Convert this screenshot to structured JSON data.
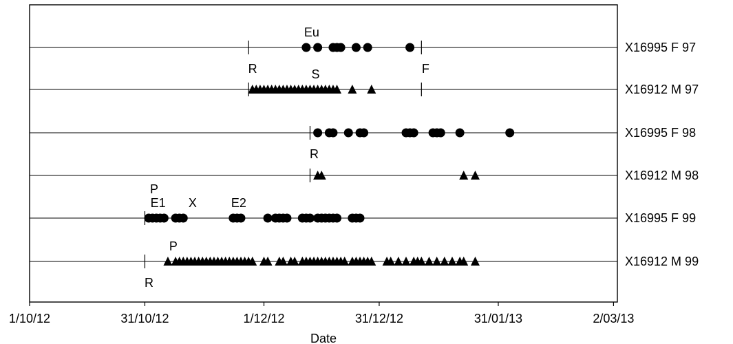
{
  "chart_data": {
    "type": "scatter",
    "title": "",
    "xlabel": "Date",
    "ylabel": "",
    "x_axis": {
      "type": "date",
      "range": [
        "2012-10-01",
        "2013-03-03"
      ],
      "ticks": [
        {
          "date": "2012-10-01",
          "label": "1/10/12"
        },
        {
          "date": "2012-10-31",
          "label": "31/10/12"
        },
        {
          "date": "2012-12-01",
          "label": "1/12/12"
        },
        {
          "date": "2012-12-31",
          "label": "31/12/12"
        },
        {
          "date": "2013-01-31",
          "label": "31/01/13"
        },
        {
          "date": "2013-03-02",
          "label": "2/03/13"
        }
      ]
    },
    "series": [
      {
        "name": "X16995 F 97",
        "marker": "circle",
        "dates": [
          "2012-12-12",
          "2012-12-15",
          "2012-12-19",
          "2012-12-20",
          "2012-12-21",
          "2012-12-25",
          "2012-12-28",
          "2013-01-08"
        ],
        "lines": [
          {
            "date": "2012-11-27",
            "label": "R"
          },
          {
            "date": "2013-01-11",
            "label": "F"
          }
        ],
        "annotations": [
          {
            "date": "2012-12-12",
            "label": "Eu"
          }
        ]
      },
      {
        "name": "X16912 M 97",
        "marker": "triangle",
        "dates": [
          "2012-11-28",
          "2012-11-29",
          "2012-11-30",
          "2012-12-01",
          "2012-12-02",
          "2012-12-03",
          "2012-12-04",
          "2012-12-05",
          "2012-12-06",
          "2012-12-07",
          "2012-12-08",
          "2012-12-09",
          "2012-12-10",
          "2012-12-11",
          "2012-12-12",
          "2012-12-13",
          "2012-12-14",
          "2012-12-15",
          "2012-12-16",
          "2012-12-17",
          "2012-12-18",
          "2012-12-19",
          "2012-12-20",
          "2012-12-24",
          "2012-12-29"
        ],
        "lines": [
          {
            "date": "2012-11-27",
            "label": ""
          },
          {
            "date": "2013-01-11",
            "label": ""
          }
        ],
        "annotations": [
          {
            "date": "2012-12-13",
            "label": "S"
          }
        ]
      },
      {
        "name": "X16995 F 98",
        "marker": "circle",
        "dates": [
          "2012-12-15",
          "2012-12-18",
          "2012-12-19",
          "2012-12-23",
          "2012-12-26",
          "2012-12-27",
          "2013-01-07",
          "2013-01-08",
          "2013-01-09",
          "2013-01-14",
          "2013-01-15",
          "2013-01-16",
          "2013-01-21",
          "2013-02-03"
        ],
        "lines": [
          {
            "date": "2012-12-13",
            "label": "R"
          }
        ],
        "annotations": []
      },
      {
        "name": "X16912 M 98",
        "marker": "triangle",
        "dates": [
          "2012-12-15",
          "2012-12-16",
          "2013-01-22",
          "2013-01-25"
        ],
        "lines": [
          {
            "date": "2012-12-13",
            "label": ""
          }
        ],
        "annotations": []
      },
      {
        "name": "X16995 F 99",
        "marker": "circle",
        "dates": [
          "2012-11-01",
          "2012-11-02",
          "2012-11-03",
          "2012-11-04",
          "2012-11-05",
          "2012-11-08",
          "2012-11-09",
          "2012-11-10",
          "2012-11-23",
          "2012-11-24",
          "2012-11-25",
          "2012-12-02",
          "2012-12-04",
          "2012-12-05",
          "2012-12-06",
          "2012-12-07",
          "2012-12-11",
          "2012-12-12",
          "2012-12-13",
          "2012-12-15",
          "2012-12-16",
          "2012-12-17",
          "2012-12-18",
          "2012-12-19",
          "2012-12-20",
          "2012-12-24",
          "2012-12-25",
          "2012-12-26"
        ],
        "lines": [
          {
            "date": "2012-10-31",
            "label": ""
          }
        ],
        "annotations": [
          {
            "date": "2012-11-01",
            "label": "P"
          },
          {
            "date": "2012-11-02",
            "label": "E1"
          },
          {
            "date": "2012-11-11",
            "label": "X"
          },
          {
            "date": "2012-11-23",
            "label": "E2"
          }
        ]
      },
      {
        "name": "X16912 M 99",
        "marker": "triangle",
        "dates": [
          "2012-11-06",
          "2012-11-08",
          "2012-11-09",
          "2012-11-10",
          "2012-11-11",
          "2012-11-12",
          "2012-11-13",
          "2012-11-14",
          "2012-11-15",
          "2012-11-16",
          "2012-11-17",
          "2012-11-18",
          "2012-11-19",
          "2012-11-20",
          "2012-11-21",
          "2012-11-22",
          "2012-11-23",
          "2012-11-24",
          "2012-11-25",
          "2012-11-26",
          "2012-11-27",
          "2012-11-28",
          "2012-12-01",
          "2012-12-02",
          "2012-12-05",
          "2012-12-06",
          "2012-12-08",
          "2012-12-09",
          "2012-12-11",
          "2012-12-12",
          "2012-12-13",
          "2012-12-14",
          "2012-12-15",
          "2012-12-16",
          "2012-12-17",
          "2012-12-18",
          "2012-12-19",
          "2012-12-20",
          "2012-12-21",
          "2012-12-22",
          "2012-12-24",
          "2012-12-25",
          "2012-12-26",
          "2012-12-27",
          "2012-12-28",
          "2012-12-29",
          "2013-01-02",
          "2013-01-03",
          "2013-01-05",
          "2013-01-07",
          "2013-01-09",
          "2013-01-10",
          "2013-01-11",
          "2013-01-13",
          "2013-01-15",
          "2013-01-17",
          "2013-01-19",
          "2013-01-21",
          "2013-01-22",
          "2013-01-25"
        ],
        "lines": [
          {
            "date": "2012-10-31",
            "label": "R"
          }
        ],
        "annotations": [
          {
            "date": "2012-11-06",
            "label": "P"
          }
        ]
      }
    ]
  }
}
